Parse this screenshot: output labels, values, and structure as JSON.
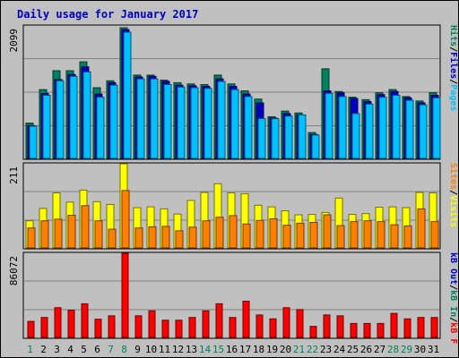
{
  "title": "Daily usage for January 2017",
  "colors": {
    "hits": "#00805c",
    "files": "#0000c0",
    "pages": "#00c0ff",
    "visits": "#ffff00",
    "sites": "#ff8000",
    "kbout": "#0000c0",
    "kbin": "#00805c",
    "kbf": "#ff0000",
    "weekend": "#00805c",
    "weekday": "#000000",
    "slash": "#000000"
  },
  "chart_data": [
    {
      "type": "bar",
      "panel": "hits-files-pages",
      "ymax_label": "2099",
      "ylim": [
        0,
        2099
      ],
      "legend": [
        {
          "key": "pages",
          "label": "Pages"
        },
        {
          "key": "files",
          "label": "Files"
        },
        {
          "key": "hits",
          "label": "Hits"
        }
      ],
      "categories": [
        "1",
        "2",
        "3",
        "4",
        "5",
        "6",
        "7",
        "8",
        "9",
        "10",
        "11",
        "12",
        "13",
        "14",
        "15",
        "16",
        "17",
        "18",
        "19",
        "20",
        "21",
        "22",
        "23",
        "24",
        "25",
        "26",
        "27",
        "28",
        "29",
        "30",
        "31"
      ],
      "series": [
        {
          "key": "hits",
          "values": [
            560,
            1090,
            1390,
            1390,
            1530,
            1120,
            1230,
            2070,
            1320,
            1320,
            1240,
            1200,
            1180,
            1170,
            1320,
            1180,
            1070,
            940,
            660,
            750,
            720,
            410,
            1420,
            1060,
            970,
            930,
            1040,
            1090,
            980,
            910,
            1040
          ]
        },
        {
          "key": "files",
          "values": [
            520,
            1030,
            1250,
            1330,
            1450,
            1020,
            1200,
            2040,
            1290,
            1300,
            1220,
            1160,
            1150,
            1140,
            1260,
            1140,
            1020,
            880,
            640,
            710,
            690,
            380,
            1070,
            1040,
            950,
            900,
            1010,
            1060,
            960,
            880,
            1000
          ]
        },
        {
          "key": "pages",
          "values": [
            510,
            1000,
            1230,
            1300,
            1370,
            970,
            1160,
            2000,
            1260,
            1260,
            1170,
            1130,
            1120,
            1110,
            1220,
            1090,
            980,
            630,
            630,
            670,
            690,
            370,
            1030,
            980,
            710,
            860,
            970,
            1000,
            920,
            850,
            960
          ]
        }
      ]
    },
    {
      "type": "bar",
      "panel": "visits-sites",
      "ymax_label": "211",
      "ylim": [
        0,
        211
      ],
      "legend": [
        {
          "key": "visits",
          "label": "Visits"
        },
        {
          "key": "sites",
          "label": "Sites"
        }
      ],
      "categories": [
        "1",
        "2",
        "3",
        "4",
        "5",
        "6",
        "7",
        "8",
        "9",
        "10",
        "11",
        "12",
        "13",
        "14",
        "15",
        "16",
        "17",
        "18",
        "19",
        "20",
        "21",
        "22",
        "23",
        "24",
        "25",
        "26",
        "27",
        "28",
        "29",
        "30",
        "31"
      ],
      "series": [
        {
          "key": "visits",
          "values": [
            68,
            99,
            138,
            115,
            145,
            116,
            109,
            211,
            101,
            103,
            98,
            85,
            119,
            139,
            161,
            138,
            136,
            107,
            103,
            93,
            83,
            84,
            89,
            125,
            84,
            86,
            102,
            103,
            101,
            139,
            138
          ]
        },
        {
          "key": "sites",
          "values": [
            50,
            68,
            72,
            82,
            106,
            68,
            47,
            144,
            50,
            53,
            54,
            43,
            52,
            68,
            77,
            81,
            60,
            69,
            73,
            57,
            62,
            64,
            83,
            56,
            66,
            68,
            66,
            58,
            55,
            98,
            66
          ]
        }
      ]
    },
    {
      "type": "bar",
      "panel": "kbytes",
      "ymax_label": "86072",
      "ylim": [
        0,
        86072
      ],
      "legend": [
        {
          "key": "kbf",
          "label": "kB F"
        },
        {
          "key": "kbin",
          "label": "kB In"
        },
        {
          "key": "kbout",
          "label": "kB Out"
        }
      ],
      "categories": [
        "1",
        "2",
        "3",
        "4",
        "5",
        "6",
        "7",
        "8",
        "9",
        "10",
        "11",
        "12",
        "13",
        "14",
        "15",
        "16",
        "17",
        "18",
        "19",
        "20",
        "21",
        "22",
        "23",
        "24",
        "25",
        "26",
        "27",
        "28",
        "29",
        "30",
        "31"
      ],
      "series": [
        {
          "key": "kbf",
          "values": [
            16400,
            20400,
            30400,
            27800,
            34400,
            18600,
            22100,
            86072,
            22100,
            27200,
            17600,
            17600,
            20400,
            27200,
            34400,
            20400,
            37100,
            23000,
            19000,
            30400,
            28500,
            11300,
            23000,
            22100,
            14300,
            14300,
            14300,
            24600,
            19000,
            20400,
            20400
          ]
        }
      ]
    }
  ]
}
